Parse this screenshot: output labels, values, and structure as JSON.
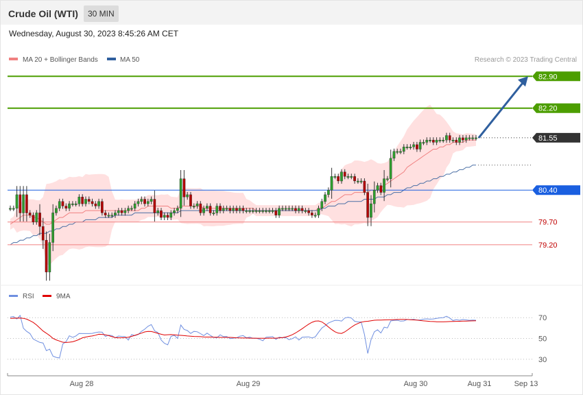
{
  "header": {
    "title": "Crude Oil (WTI)",
    "timeframe": "30 MIN"
  },
  "timestamp": "Wednesday, August 30, 2023 8:45:26 AM CET",
  "legend": {
    "ma20": "MA 20 + Bollinger Bands",
    "ma50": "MA 50",
    "credit": "Research © 2023 Trading Central",
    "rsi": "RSI",
    "rsi_ma": "9MA"
  },
  "colors": {
    "up_candle": "#2e9e2e",
    "down_candle": "#b40000",
    "ma20": "#f08080",
    "ma50": "#4a6fa5",
    "band_fill": "#ffd6d6",
    "resistance": "#4c9e00",
    "support": "#f08080",
    "pivot": "#1a5fe0",
    "current": "#333333",
    "rsi": "#6f8fe0",
    "rsi_ma": "#e00000",
    "arrow": "#2f5f9e"
  },
  "chart_data": [
    {
      "type": "candlestick",
      "instrument": "Crude Oil (WTI)",
      "interval": "30 MIN",
      "ylim": [
        78.4,
        83.1
      ],
      "levels": [
        {
          "value": 82.9,
          "label": "82.90",
          "kind": "resistance"
        },
        {
          "value": 82.2,
          "label": "82.20",
          "kind": "resistance"
        },
        {
          "value": 81.55,
          "label": "81.55",
          "kind": "current"
        },
        {
          "value": 80.4,
          "label": "80.40",
          "kind": "pivot"
        },
        {
          "value": 79.7,
          "label": "79.70",
          "kind": "support"
        },
        {
          "value": 79.2,
          "label": "79.20",
          "kind": "support"
        }
      ],
      "forecast_target": 82.9,
      "x_ticks": [
        "Aug 28",
        "Aug 29",
        "Aug 30",
        "Aug 31",
        "Sep 13"
      ],
      "close": [
        80.0,
        80.0,
        80.3,
        79.9,
        80.3,
        79.9,
        79.85,
        79.7,
        79.9,
        79.6,
        79.3,
        78.6,
        79.25,
        79.9,
        80.0,
        80.15,
        80.05,
        80.0,
        80.1,
        80.1,
        80.1,
        80.25,
        80.1,
        80.2,
        80.15,
        80.1,
        80.05,
        80.15,
        79.9,
        79.85,
        79.85,
        79.85,
        79.9,
        79.95,
        79.9,
        79.95,
        80.0,
        80.0,
        80.1,
        80.15,
        80.2,
        80.1,
        80.15,
        80.2,
        79.9,
        79.95,
        79.8,
        79.85,
        79.8,
        79.9,
        79.95,
        80.0,
        80.65,
        80.25,
        80.3,
        80.05,
        80.05,
        80.1,
        79.9,
        80.0,
        80.05,
        79.9,
        79.9,
        80.05,
        79.95,
        80.0,
        80.0,
        79.95,
        80.0,
        79.95,
        80.0,
        79.95,
        79.95,
        79.95,
        79.95,
        79.95,
        79.95,
        79.95,
        79.95,
        79.95,
        79.95,
        79.85,
        80.0,
        80.0,
        80.0,
        80.0,
        80.0,
        79.95,
        80.0,
        79.95,
        79.95,
        79.9,
        79.85,
        79.85,
        80.0,
        80.15,
        80.3,
        80.4,
        80.7,
        80.7,
        80.6,
        80.8,
        80.7,
        80.7,
        80.7,
        80.6,
        80.6,
        80.6,
        80.35,
        79.8,
        80.1,
        80.4,
        80.5,
        80.35,
        80.65,
        80.65,
        81.1,
        81.25,
        81.25,
        81.25,
        81.35,
        81.35,
        81.35,
        81.4,
        81.3,
        81.45,
        81.45,
        81.5,
        81.5,
        81.45,
        81.5,
        81.5,
        81.5,
        81.6,
        81.5,
        81.5,
        81.45,
        81.55,
        81.5,
        81.55,
        81.55,
        81.55,
        81.55
      ],
      "ma20": [
        79.65,
        79.7,
        79.75,
        79.8,
        79.85,
        79.85,
        79.85,
        79.8,
        79.8,
        79.75,
        79.7,
        79.65,
        79.65,
        79.7,
        79.75,
        79.8,
        79.8,
        79.85,
        79.9,
        79.9,
        79.9,
        79.9,
        79.9,
        79.95,
        79.95,
        79.95,
        79.95,
        79.95,
        79.95,
        79.95,
        79.95,
        79.95,
        79.95,
        79.95,
        79.95,
        79.95,
        79.95,
        79.95,
        79.95,
        79.95,
        80.0,
        80.0,
        80.05,
        80.05,
        80.05,
        80.05,
        80.05,
        80.05,
        80.05,
        80.0,
        80.0,
        80.0,
        80.05,
        80.05,
        80.05,
        80.05,
        80.05,
        80.05,
        80.05,
        80.0,
        80.0,
        80.0,
        80.0,
        80.0,
        80.0,
        80.0,
        80.0,
        80.0,
        80.0,
        80.0,
        80.0,
        80.0,
        80.0,
        80.0,
        80.0,
        79.95,
        79.95,
        79.95,
        79.95,
        79.95,
        79.95,
        79.95,
        79.95,
        79.95,
        79.95,
        79.95,
        79.95,
        79.95,
        79.95,
        79.95,
        79.95,
        79.95,
        79.95,
        79.95,
        80.0,
        80.0,
        80.05,
        80.1,
        80.15,
        80.15,
        80.2,
        80.25,
        80.3,
        80.3,
        80.3,
        80.35,
        80.35,
        80.35,
        80.35,
        80.35,
        80.4,
        80.4,
        80.4,
        80.45,
        80.5,
        80.55,
        80.6,
        80.65,
        80.7,
        80.75,
        80.8,
        80.9,
        80.95,
        81.0,
        81.05,
        81.1,
        81.15,
        81.2,
        81.25,
        81.3,
        81.3,
        81.35,
        81.35,
        81.4,
        81.4,
        81.45,
        81.45,
        81.45,
        81.45,
        81.5,
        81.5,
        81.5,
        81.5
      ],
      "ma50": [
        79.2,
        79.25,
        79.25,
        79.3,
        79.3,
        79.35,
        79.35,
        79.4,
        79.4,
        79.45,
        79.45,
        79.45,
        79.5,
        79.5,
        79.55,
        79.55,
        79.6,
        79.6,
        79.65,
        79.65,
        79.7,
        79.7,
        79.7,
        79.75,
        79.75,
        79.75,
        79.75,
        79.8,
        79.8,
        79.8,
        79.8,
        79.8,
        79.85,
        79.85,
        79.85,
        79.85,
        79.85,
        79.85,
        79.9,
        79.9,
        79.9,
        79.9,
        79.9,
        79.9,
        79.9,
        79.9,
        79.9,
        79.9,
        79.9,
        79.9,
        79.9,
        79.9,
        79.95,
        79.95,
        79.95,
        79.95,
        79.95,
        79.95,
        79.95,
        79.95,
        79.95,
        79.95,
        79.95,
        79.95,
        79.95,
        79.95,
        79.95,
        79.95,
        79.95,
        79.95,
        79.95,
        79.95,
        79.95,
        79.95,
        79.95,
        79.95,
        79.95,
        79.95,
        79.95,
        79.95,
        79.95,
        79.95,
        79.95,
        79.95,
        79.95,
        79.95,
        79.95,
        79.95,
        79.95,
        79.95,
        79.95,
        79.95,
        79.95,
        79.95,
        79.95,
        80.0,
        80.0,
        80.05,
        80.05,
        80.05,
        80.1,
        80.1,
        80.1,
        80.15,
        80.15,
        80.15,
        80.15,
        80.15,
        80.2,
        80.2,
        80.2,
        80.2,
        80.25,
        80.25,
        80.25,
        80.3,
        80.3,
        80.35,
        80.35,
        80.35,
        80.4,
        80.45,
        80.45,
        80.5,
        80.5,
        80.55,
        80.55,
        80.6,
        80.6,
        80.65,
        80.65,
        80.7,
        80.7,
        80.75,
        80.75,
        80.8,
        80.8,
        80.85,
        80.85,
        80.9,
        80.9,
        80.95,
        80.95
      ]
    },
    {
      "type": "line",
      "name": "RSI",
      "ylim": [
        22,
        80
      ],
      "y_ticks": [
        "70",
        "50",
        "30"
      ],
      "series": [
        {
          "name": "RSI",
          "values": [
            70.5,
            71.0,
            68.7,
            72.1,
            59.8,
            56.8,
            54.7,
            49.4,
            47.8,
            46.2,
            45.6,
            38.3,
            39.7,
            33.0,
            31.8,
            31.2,
            44.6,
            46.9,
            52.6,
            51.0,
            52.4,
            54.8,
            54.7,
            54.7,
            54.7,
            54.9,
            55.6,
            56.2,
            56.0,
            51.9,
            53.2,
            52.8,
            50.6,
            52.3,
            51.9,
            51.7,
            48.4,
            53.7,
            52.7,
            53.8,
            56.8,
            58.9,
            61.7,
            63.3,
            57.3,
            55.7,
            48.5,
            45.3,
            43.9,
            52.0,
            53.0,
            50.1,
            62.9,
            58.7,
            57.6,
            54.8,
            56.8,
            56.4,
            54.6,
            52.7,
            55.1,
            52.9,
            51.0,
            50.6,
            53.5,
            51.7,
            51.8,
            49.9,
            50.3,
            50.6,
            52.2,
            52.7,
            50.6,
            51.2,
            50.1,
            50.3,
            49.2,
            47.8,
            51.2,
            51.4,
            51.7,
            49.1,
            51.2,
            50.7,
            50.9,
            48.8,
            49.8,
            51.5,
            48.5,
            51.1,
            51.3,
            51.5,
            50.4,
            51.5,
            56.0,
            60.0,
            62.2,
            64.8,
            66.2,
            67.4,
            67.3,
            66.7,
            69.6,
            70.3,
            69.6,
            66.5,
            65.8,
            65.8,
            53.7,
            35.6,
            48.9,
            56.4,
            58.3,
            55.2,
            60.8,
            60.1,
            66.8,
            67.3,
            67.5,
            66.6,
            66.8,
            68.2,
            68.1,
            68.4,
            67.7,
            67.8,
            68.5,
            68.8,
            68.5,
            68.7,
            69.3,
            69.8,
            70.0,
            71.3,
            69.6,
            67.2,
            68.1,
            67.5,
            68.2,
            67.8,
            67.4,
            67.7,
            67.5
          ]
        },
        {
          "name": "9MA",
          "values": [
            69.3,
            69.4,
            69.5,
            69.6,
            69.3,
            68.5,
            67.0,
            65.4,
            62.9,
            60.0,
            57.1,
            55.0,
            52.8,
            50.1,
            48.6,
            47.5,
            46.4,
            46.1,
            46.4,
            46.8,
            47.8,
            49.0,
            50.6,
            51.3,
            52.0,
            52.4,
            53.1,
            54.0,
            53.9,
            53.5,
            52.7,
            51.7,
            50.9,
            50.6,
            50.7,
            50.9,
            51.2,
            52.0,
            53.0,
            54.1,
            55.1,
            56.3,
            56.8,
            56.7,
            55.9,
            54.9,
            54.0,
            53.3,
            53.6,
            53.7,
            53.5,
            53.2,
            53.0,
            52.7,
            52.4,
            52.2,
            51.9,
            51.8,
            51.7,
            51.4,
            51.3,
            51.3,
            51.2,
            51.1,
            51.0,
            51.0,
            51.0,
            51.0,
            50.8,
            50.6,
            50.5,
            50.4,
            50.4,
            50.3,
            50.3,
            50.2,
            50.2,
            50.2,
            50.2,
            50.3,
            50.3,
            50.3,
            50.5,
            50.8,
            51.4,
            52.3,
            53.6,
            55.3,
            57.3,
            59.4,
            61.6,
            63.7,
            65.5,
            66.6,
            66.8,
            65.9,
            63.7,
            61.0,
            58.5,
            56.4,
            55.1,
            54.8,
            56.3,
            58.5,
            60.8,
            62.9,
            64.4,
            65.6,
            66.2,
            66.5,
            67.0,
            67.5,
            67.6,
            67.7,
            67.8,
            67.9,
            68.0,
            68.1,
            68.2,
            68.3,
            68.3,
            68.2,
            68.0,
            67.8,
            67.6,
            67.2,
            66.9,
            66.6,
            66.3,
            66.2,
            66.0,
            66.0,
            66.0,
            66.1,
            66.2,
            66.3,
            66.4,
            66.5,
            66.6,
            66.7,
            66.8,
            66.9,
            67.0
          ]
        }
      ]
    }
  ]
}
